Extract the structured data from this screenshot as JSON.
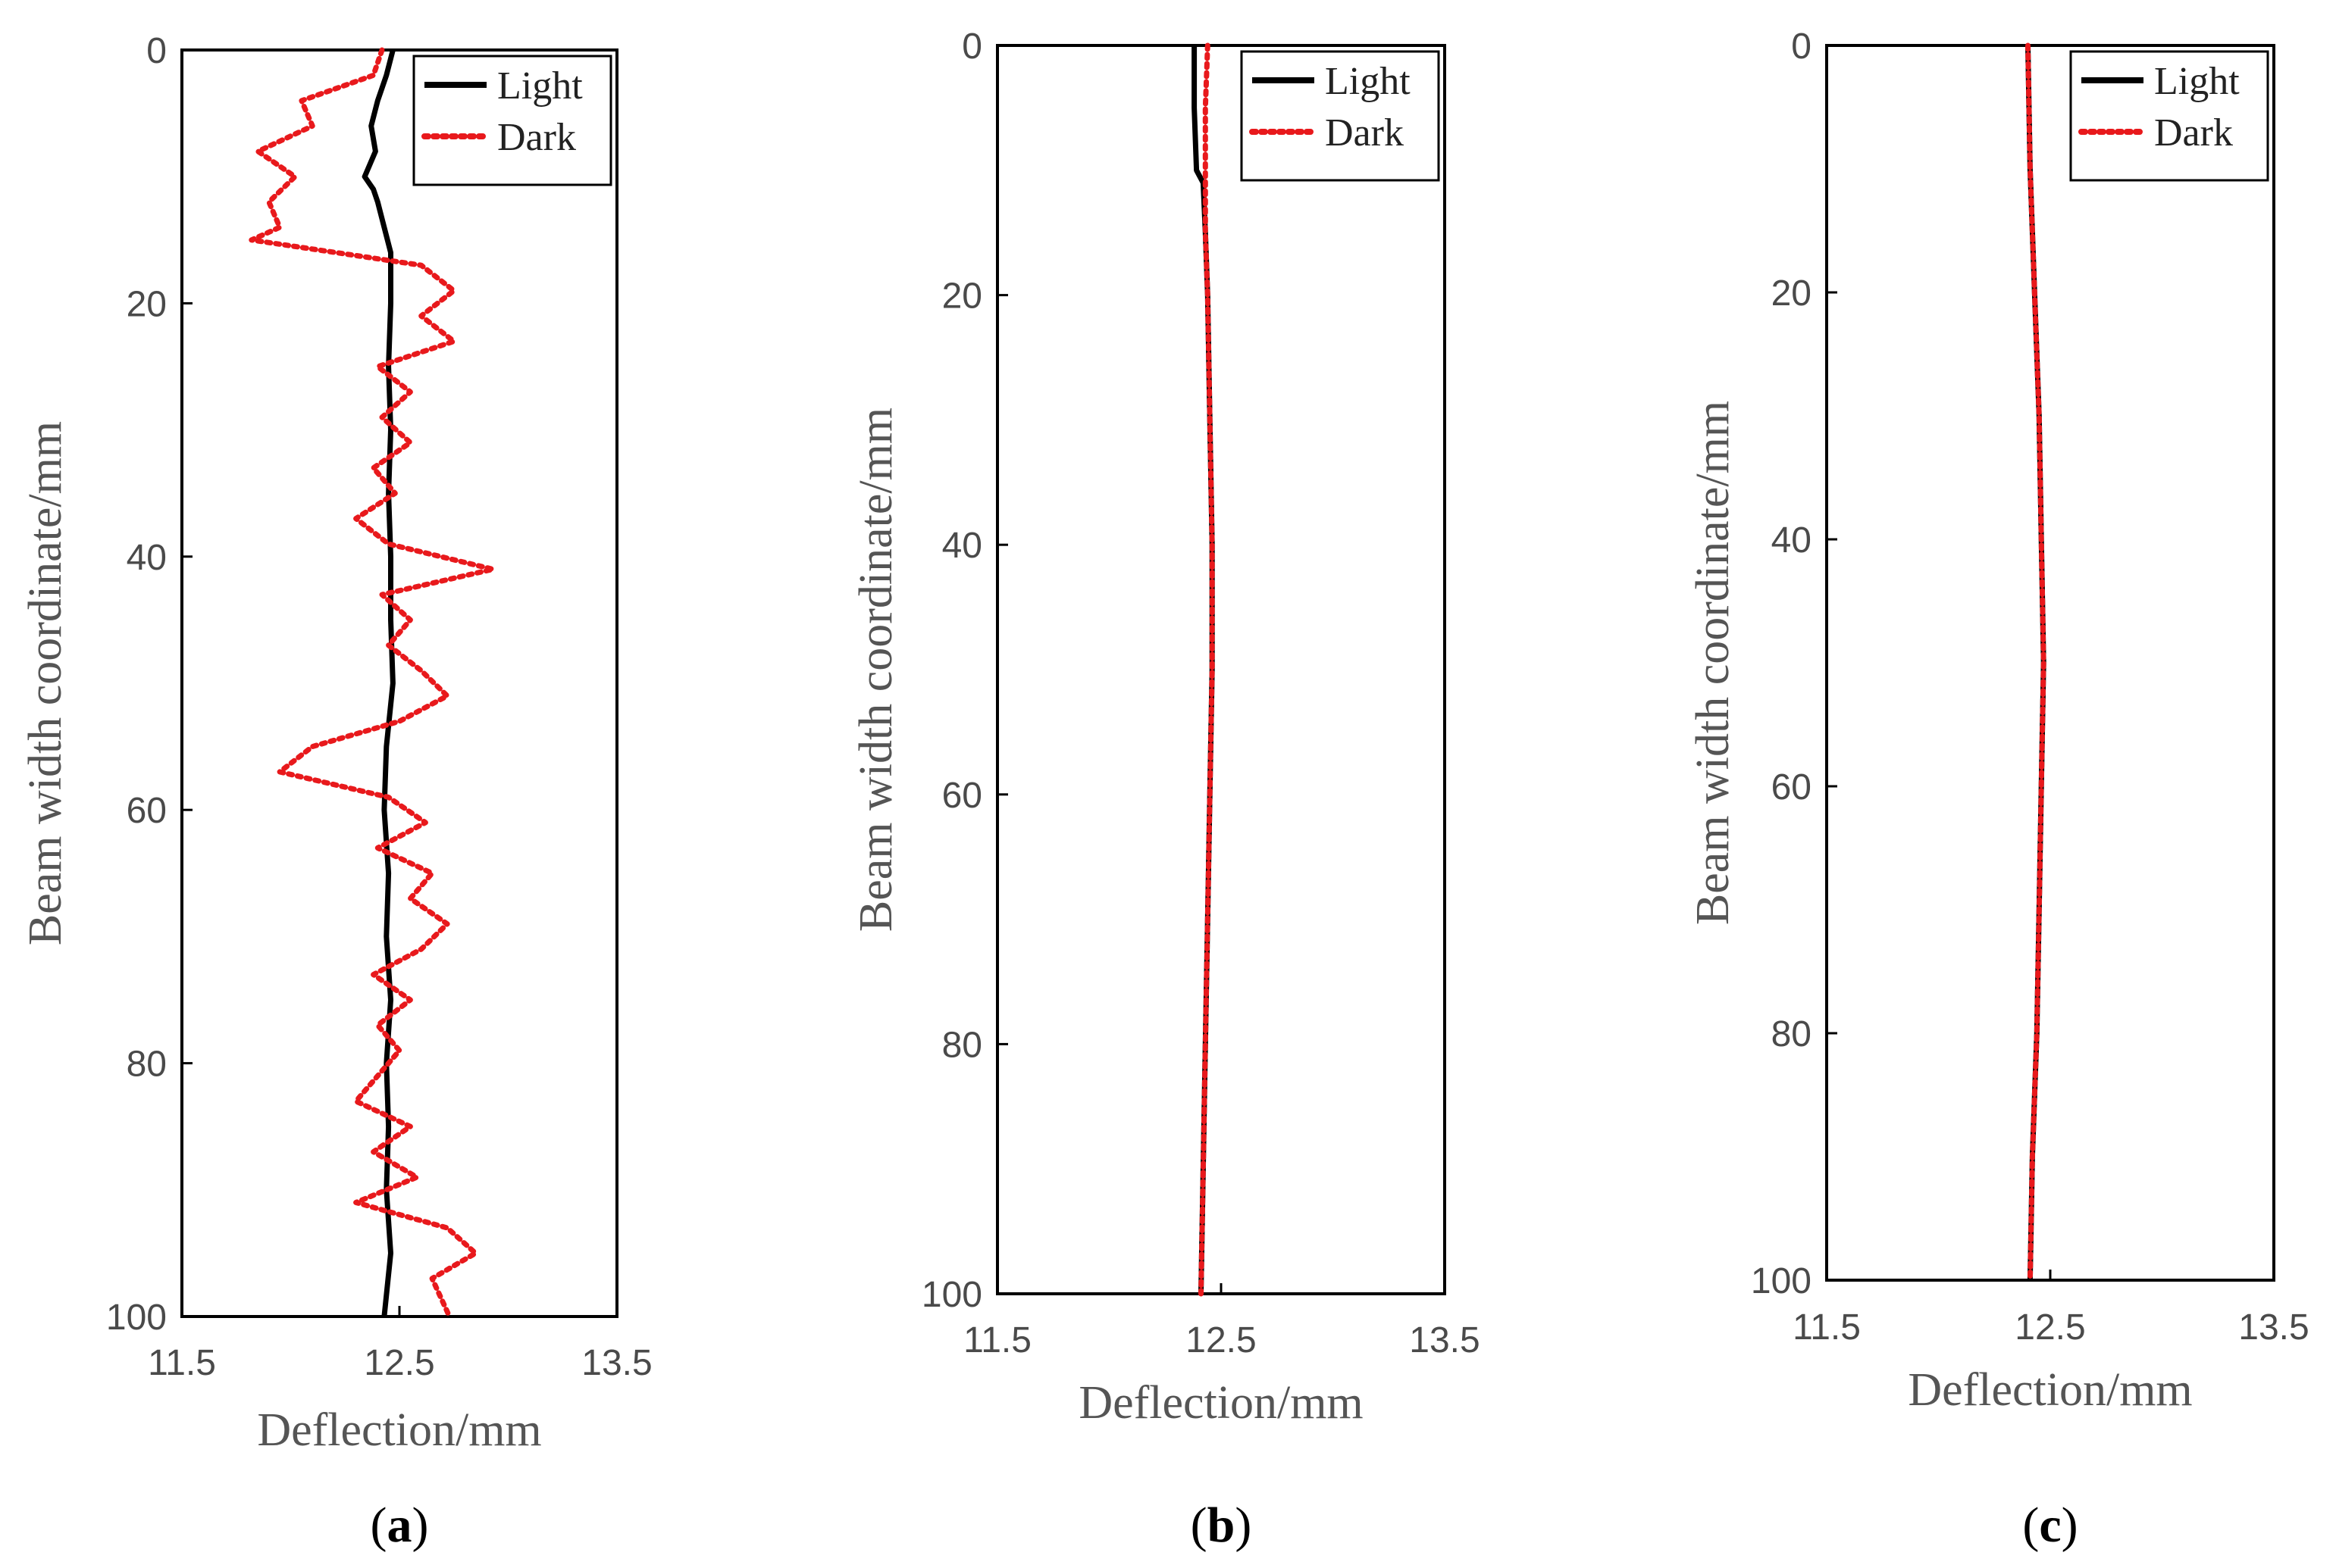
{
  "chart_data": [
    {
      "type": "line",
      "panel_label": "a",
      "caption_open": "(",
      "caption_close": ")",
      "xlabel": "Deflection/mm",
      "ylabel": "Beam width coordinate/mm",
      "xlim": [
        11.5,
        13.5
      ],
      "ylim": [
        0,
        100
      ],
      "y_inverted": true,
      "xticks": [
        11.5,
        12.5,
        13.5
      ],
      "xtick_labels": [
        "11.5",
        "12.5",
        "13.5"
      ],
      "yticks": [
        0,
        20,
        40,
        60,
        80,
        100
      ],
      "ytick_labels": [
        "0",
        "20",
        "40",
        "60",
        "80",
        "100"
      ],
      "legend_position": "top-right",
      "grid": false,
      "series": [
        {
          "name": "Light",
          "style": "solid",
          "color": "#000000",
          "y": [
            0,
            2,
            4,
            6,
            8,
            10,
            11,
            12,
            14,
            16,
            20,
            25,
            30,
            35,
            40,
            45,
            50,
            55,
            60,
            65,
            70,
            75,
            80,
            85,
            90,
            95,
            100
          ],
          "x": [
            12.47,
            12.44,
            12.4,
            12.37,
            12.39,
            12.34,
            12.38,
            12.4,
            12.43,
            12.46,
            12.46,
            12.45,
            12.46,
            12.45,
            12.46,
            12.46,
            12.47,
            12.44,
            12.43,
            12.45,
            12.44,
            12.46,
            12.44,
            12.45,
            12.44,
            12.46,
            12.43
          ]
        },
        {
          "name": "Dark",
          "style": "dotted",
          "color": "#e8191c",
          "y": [
            0,
            2,
            4,
            6,
            8,
            10,
            12,
            14,
            15,
            17,
            19,
            21,
            23,
            25,
            27,
            29,
            31,
            33,
            35,
            37,
            39,
            41,
            43,
            45,
            47,
            49,
            51,
            53,
            55,
            57,
            59,
            61,
            63,
            65,
            67,
            69,
            71,
            73,
            75,
            77,
            79,
            81,
            83,
            85,
            87,
            89,
            91,
            93,
            95,
            97,
            100
          ],
          "x": [
            12.42,
            12.38,
            12.05,
            12.1,
            11.85,
            12.02,
            11.9,
            11.95,
            11.82,
            12.6,
            12.75,
            12.6,
            12.75,
            12.4,
            12.55,
            12.42,
            12.55,
            12.38,
            12.48,
            12.3,
            12.45,
            12.93,
            12.42,
            12.55,
            12.45,
            12.6,
            12.72,
            12.5,
            12.1,
            11.95,
            12.45,
            12.62,
            12.4,
            12.65,
            12.55,
            12.72,
            12.6,
            12.38,
            12.55,
            12.4,
            12.5,
            12.4,
            12.3,
            12.55,
            12.38,
            12.58,
            12.3,
            12.72,
            12.85,
            12.65,
            12.73
          ]
        }
      ]
    },
    {
      "type": "line",
      "panel_label": "b",
      "caption_open": "(",
      "caption_close": ")",
      "xlabel": "Deflection/mm",
      "ylabel": "Beam width coordinate/mm",
      "xlim": [
        11.5,
        13.5
      ],
      "ylim": [
        0,
        100
      ],
      "y_inverted": true,
      "xticks": [
        11.5,
        12.5,
        13.5
      ],
      "xtick_labels": [
        "11.5",
        "12.5",
        "13.5"
      ],
      "yticks": [
        0,
        20,
        40,
        60,
        80,
        100
      ],
      "ytick_labels": [
        "0",
        "20",
        "40",
        "60",
        "80",
        "100"
      ],
      "legend_position": "top-right",
      "grid": false,
      "series": [
        {
          "name": "Light",
          "style": "solid",
          "color": "#000000",
          "y": [
            0,
            5,
            10,
            11,
            15,
            20,
            30,
            40,
            50,
            60,
            70,
            80,
            90,
            100
          ],
          "x": [
            12.38,
            12.38,
            12.39,
            12.42,
            12.43,
            12.44,
            12.45,
            12.46,
            12.46,
            12.45,
            12.44,
            12.43,
            12.42,
            12.41
          ]
        },
        {
          "name": "Dark",
          "style": "dotted",
          "color": "#e8191c",
          "y": [
            0,
            5,
            10,
            11,
            15,
            20,
            30,
            40,
            50,
            60,
            70,
            80,
            90,
            100
          ],
          "x": [
            12.44,
            12.43,
            12.43,
            12.43,
            12.43,
            12.44,
            12.45,
            12.46,
            12.46,
            12.45,
            12.44,
            12.43,
            12.42,
            12.41
          ]
        }
      ]
    },
    {
      "type": "line",
      "panel_label": "c",
      "caption_open": "(",
      "caption_close": ")",
      "xlabel": "Deflection/mm",
      "ylabel": "Beam width coordinate/mm",
      "xlim": [
        11.5,
        13.5
      ],
      "ylim": [
        0,
        100
      ],
      "y_inverted": true,
      "xticks": [
        11.5,
        12.5,
        13.5
      ],
      "xtick_labels": [
        "11.5",
        "12.5",
        "13.5"
      ],
      "yticks": [
        0,
        20,
        40,
        60,
        80,
        100
      ],
      "ytick_labels": [
        "0",
        "20",
        "40",
        "60",
        "80",
        "100"
      ],
      "legend_position": "top-right",
      "grid": false,
      "series": [
        {
          "name": "Light",
          "style": "solid",
          "color": "#000000",
          "y": [
            0,
            10,
            20,
            30,
            40,
            50,
            60,
            70,
            80,
            90,
            100
          ],
          "x": [
            12.4,
            12.41,
            12.43,
            12.45,
            12.46,
            12.47,
            12.46,
            12.45,
            12.44,
            12.42,
            12.41
          ]
        },
        {
          "name": "Dark",
          "style": "dotted",
          "color": "#e8191c",
          "y": [
            0,
            10,
            20,
            30,
            40,
            50,
            60,
            70,
            80,
            90,
            100
          ],
          "x": [
            12.4,
            12.41,
            12.43,
            12.45,
            12.46,
            12.47,
            12.46,
            12.45,
            12.44,
            12.42,
            12.41
          ]
        }
      ]
    }
  ]
}
